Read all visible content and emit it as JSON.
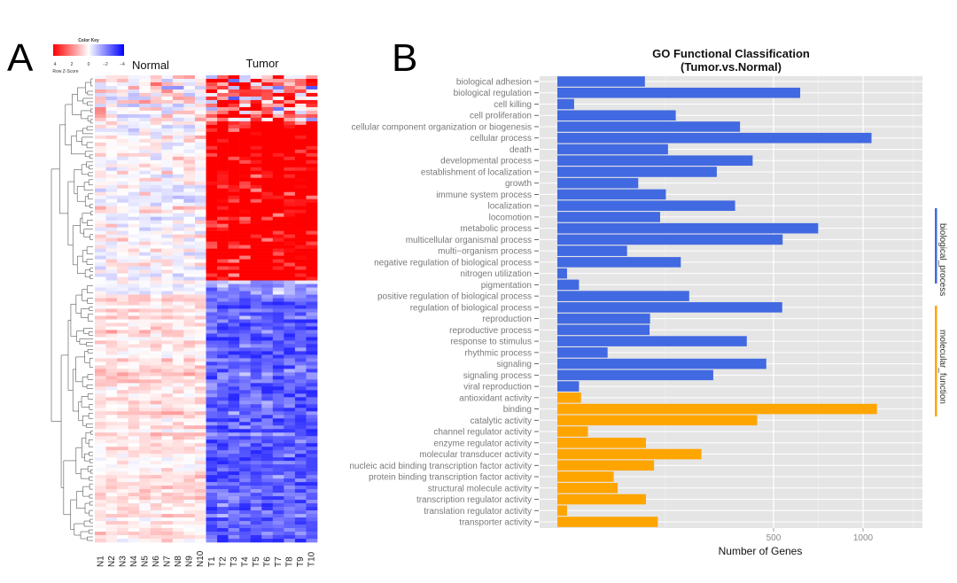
{
  "panel_labels": {
    "a": "A",
    "b": "B"
  },
  "chart_data": [
    {
      "type": "heatmap",
      "color_key": {
        "title": "Color Key",
        "subtitle": "Row Z-Score",
        "ticks": [
          "4",
          "2",
          "0",
          "−2",
          "−4"
        ],
        "colors": {
          "high": "#ff0000",
          "mid": "#ffffff",
          "low": "#0000ff"
        }
      },
      "group_labels": {
        "normal": "Normal",
        "tumor": "Tumor"
      },
      "columns": [
        "N1",
        "N2",
        "N3",
        "N4",
        "N5",
        "N6",
        "N7",
        "N8",
        "N9",
        "N10",
        "T1",
        "T2",
        "T3",
        "T4",
        "T5",
        "T6",
        "T7",
        "T8",
        "T9",
        "T10"
      ],
      "row_dendrogram": true,
      "row_clusters": [
        {
          "fraction": 0.1,
          "normal_z": 0.0,
          "tumor_z": 1.2,
          "spread": 2.2
        },
        {
          "fraction": 0.34,
          "normal_z": -0.1,
          "tumor_z": 3.2,
          "spread": 1.3
        },
        {
          "fraction": 0.03,
          "normal_z": 0.0,
          "tumor_z": -1.5,
          "spread": 1.0
        },
        {
          "fraction": 0.53,
          "normal_z": 0.4,
          "tumor_z": -2.6,
          "spread": 0.8
        }
      ]
    },
    {
      "type": "bar",
      "orientation": "horizontal",
      "title": "GO Functional Classification",
      "subtitle": "(Tumor.vs.Normal)",
      "xlabel": "Number of Genes",
      "ylabel": "",
      "x_scale": "sqrt",
      "x_ticks": [
        "500",
        "1000"
      ],
      "x_tick_values": [
        500,
        1000
      ],
      "xlim": [
        0,
        1430
      ],
      "grid": true,
      "legend_position": "right",
      "legend": [
        {
          "name": "biological_process",
          "color": "#4169e1"
        },
        {
          "name": "molecular_function",
          "color": "#ffa500"
        }
      ],
      "categories": [
        "biological adhesion",
        "biological regulation",
        "cell killing",
        "cell proliferation",
        "cellular component organization or biogenesis",
        "cellular process",
        "death",
        "developmental process",
        "establishment of localization",
        "growth",
        "immune system process",
        "localization",
        "locomotion",
        "metabolic process",
        "multicellular organismal process",
        "multi−organism process",
        "negative regulation of biological process",
        "nitrogen utilization",
        "pigmentation",
        "positive regulation of biological process",
        "regulation of biological process",
        "reproduction",
        "reproductive process",
        "response to stimulus",
        "rhythmic process",
        "signaling",
        "signaling process",
        "viral reproduction",
        "antioxidant activity",
        "binding",
        "catalytic activity",
        "channel regulator activity",
        "enzyme regulator activity",
        "molecular transducer activity",
        "nucleic acid binding transcription factor activity",
        "protein binding transcription factor activity",
        "structural molecule activity",
        "transcription regulator activity",
        "translation regulator activity",
        "transporter activity"
      ],
      "values": [
        82,
        631,
        3,
        150,
        357,
        1056,
        131,
        408,
        272,
        70,
        126,
        338,
        113,
        728,
        543,
        52,
        163,
        1,
        5,
        186,
        541,
        92,
        91,
        384,
        27,
        467,
        260,
        5,
        6,
        1093,
        427,
        10,
        84,
        222,
        100,
        34,
        39,
        84,
        1,
        108
      ],
      "groups": [
        "biological_process",
        "biological_process",
        "biological_process",
        "biological_process",
        "biological_process",
        "biological_process",
        "biological_process",
        "biological_process",
        "biological_process",
        "biological_process",
        "biological_process",
        "biological_process",
        "biological_process",
        "biological_process",
        "biological_process",
        "biological_process",
        "biological_process",
        "biological_process",
        "biological_process",
        "biological_process",
        "biological_process",
        "biological_process",
        "biological_process",
        "biological_process",
        "biological_process",
        "biological_process",
        "biological_process",
        "biological_process",
        "molecular_function",
        "molecular_function",
        "molecular_function",
        "molecular_function",
        "molecular_function",
        "molecular_function",
        "molecular_function",
        "molecular_function",
        "molecular_function",
        "molecular_function",
        "molecular_function",
        "molecular_function"
      ]
    }
  ]
}
